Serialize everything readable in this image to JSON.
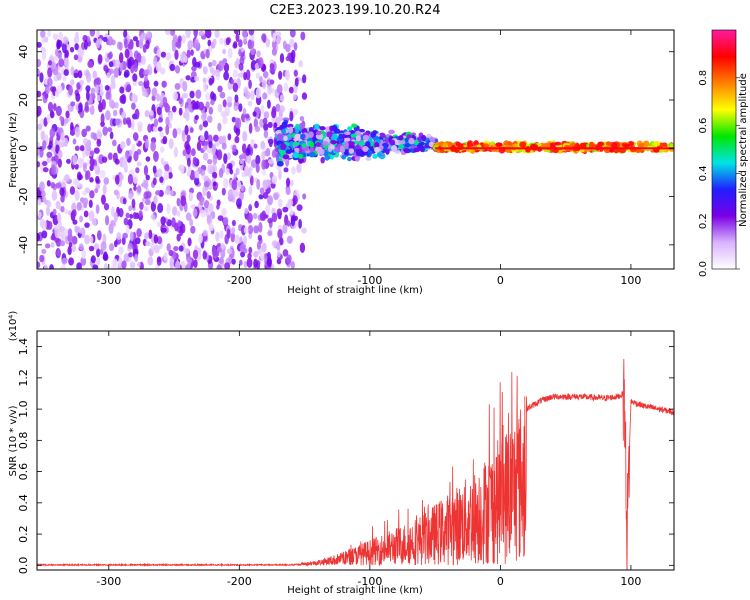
{
  "figure_title": "C2E3.2023.199.10.20.R24",
  "chart_data": [
    {
      "type": "heatmap",
      "title": "C2E3.2023.199.10.20.R24",
      "xlabel": "Height of straight line (km)",
      "ylabel": "Frequency (Hz)",
      "xlim": [
        -355,
        133
      ],
      "ylim": [
        -50,
        49
      ],
      "xticks": [
        -300,
        -200,
        -100,
        0,
        100
      ],
      "yticks": [
        -40,
        -20,
        0,
        20,
        40
      ],
      "colorbar": {
        "label": "Normalized spectral amplitude",
        "range": [
          0,
          1
        ],
        "ticks": [
          "0.0",
          "0.2",
          "0.4",
          "0.6",
          "0.8"
        ],
        "colors": [
          "#ffffff",
          "#d9b3ff",
          "#7a00e6",
          "#1f1fff",
          "#00e5e5",
          "#00e600",
          "#ffff00",
          "#ff8000",
          "#ff0000",
          "#ff1aa0"
        ]
      },
      "regions": [
        {
          "description": "broadband noise",
          "x_range": [
            -355,
            -165
          ],
          "freq_range": [
            -50,
            49
          ],
          "amplitude": 0.08
        },
        {
          "description": "transition",
          "x_range": [
            -165,
            -150
          ],
          "freq_range": [
            -50,
            49
          ],
          "amplitude": 0.05
        },
        {
          "description": "signal onset spread",
          "x_range": [
            -170,
            -50
          ],
          "freq_range": [
            -15,
            15
          ],
          "amplitude": 0.25
        },
        {
          "description": "narrow carrier",
          "x_range": [
            -50,
            133
          ],
          "freq_range": [
            -1,
            2
          ],
          "amplitude": 0.85
        }
      ]
    },
    {
      "type": "line",
      "title": "",
      "xlabel": "Height of straight line (km)",
      "ylabel": "SNR (10 * v/v)",
      "y_exponent_label": "(x10⁴)",
      "xlim": [
        -355,
        133
      ],
      "ylim": [
        -0.03,
        1.5
      ],
      "xticks": [
        -300,
        -200,
        -100,
        0,
        100
      ],
      "yticks": [
        "0.0",
        "0.2",
        "0.4",
        "0.6",
        "0.8",
        "1.0",
        "1.2",
        "1.4"
      ],
      "color": "#ee3333",
      "series": [
        {
          "x": [
            -355,
            -300,
            -250,
            -200,
            -160,
            -140,
            -120,
            -100,
            -80,
            -60,
            -40,
            -20,
            0,
            10,
            20,
            30,
            40,
            60,
            80,
            90,
            95,
            97,
            100,
            110,
            133
          ],
          "y": [
            0.0,
            0.0,
            0.0,
            0.0,
            0.005,
            0.03,
            0.08,
            0.15,
            0.22,
            0.3,
            0.42,
            0.55,
            0.75,
            0.88,
            1.0,
            1.05,
            1.08,
            1.08,
            1.07,
            1.08,
            1.1,
            0.2,
            1.05,
            1.02,
            0.98
          ]
        }
      ]
    }
  ]
}
